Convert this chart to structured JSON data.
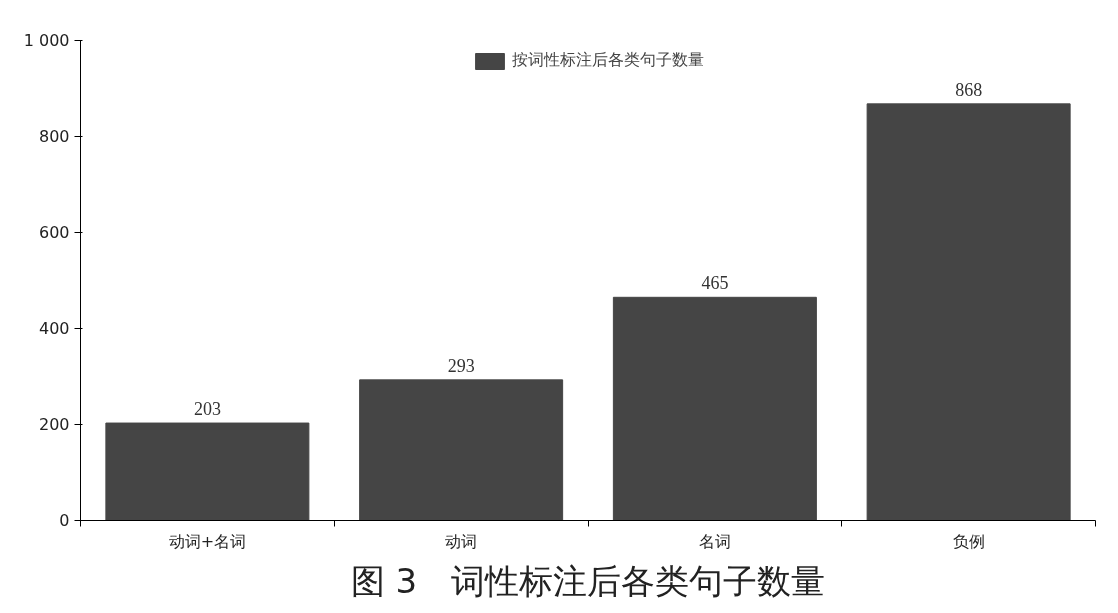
{
  "chart_data": {
    "type": "bar",
    "title": "图 3　词性标注后各类句子数量",
    "categories": [
      "动词+名词",
      "动词",
      "名词",
      "负例"
    ],
    "series": [
      {
        "name": "按词性标注后各类句子数量",
        "color": "#454545",
        "values": [
          203,
          293,
          465,
          868
        ]
      }
    ],
    "ylim": [
      0,
      1000
    ],
    "yticks": [
      0,
      200,
      400,
      600,
      800,
      {
        "value": 1000,
        "label": "1 000"
      }
    ],
    "grid": false,
    "legend": "top",
    "data_labels": true
  }
}
